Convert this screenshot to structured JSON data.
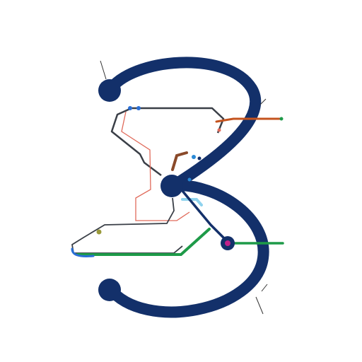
{
  "diagram": {
    "colors": {
      "background": "#ffffff",
      "main_stroke": "#13306a",
      "dark_line": "#3a3f47",
      "salmon_line": "#e06a5a",
      "green_line": "#1e9a48",
      "orange_line": "#c4531e",
      "light_blue_line": "#8fd3ee",
      "brown_line": "#8a4a2a",
      "node_fill": "#13306a",
      "magenta_node": "#c0208a",
      "label_text": "#555555"
    },
    "labels": {
      "top": "",
      "upper_left": "",
      "left_mid": "",
      "upper_center": "",
      "upper_right": "",
      "right_mid": "",
      "center_small": "",
      "right_center": "",
      "lower_left": "",
      "lower_right": "",
      "bottom_right": "",
      "bottom_left": "",
      "bottom_center": ""
    }
  }
}
